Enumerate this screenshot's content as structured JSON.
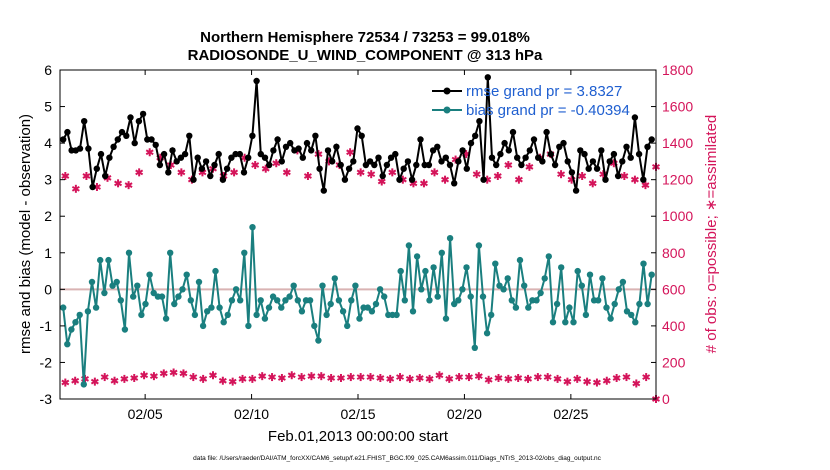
{
  "chart_data": {
    "type": "line",
    "title_line1": "Northern Hemisphere 72534 / 73253 = 99.018%",
    "title_line2": "RADIOSONDE_U_WIND_COMPONENT @ 313 hPa",
    "xlabel": "Feb.01,2013 00:00:00 start",
    "ylabel_left": "rmse and bias (model - observation)",
    "ylabel_right": "# of obs: o=possible; ∗=assimilated",
    "footer": "data file: /Users/raeder/DAI/ATM_forcXX/CAM6_setup/f.e21.FHIST_BGC.f09_025.CAM6assim.011/Diags_NTrS_2013-02/obs_diag_output.nc",
    "xlim": [
      1,
      29
    ],
    "ylim_left": [
      -3,
      6
    ],
    "ylim_right": [
      0,
      1800
    ],
    "x_ticks": [
      5,
      10,
      15,
      20,
      25
    ],
    "x_tick_labels": [
      "02/05",
      "02/10",
      "02/15",
      "02/20",
      "02/25"
    ],
    "y_ticks_left": [
      "-3",
      "-2",
      "-1",
      "0",
      "1",
      "2",
      "3",
      "4",
      "5",
      "6"
    ],
    "y_ticks_right": [
      "0",
      "200",
      "400",
      "600",
      "800",
      "1000",
      "1200",
      "1400",
      "1600",
      "1800"
    ],
    "zero_line": 0,
    "legend": [
      {
        "name": "rmse grand pr = 3.8327",
        "color": "#000000"
      },
      {
        "name": "bias grand pr = -0.40394",
        "color": "#1a7f7f"
      }
    ],
    "colors": {
      "rmse": "#000000",
      "bias": "#1a7f7f",
      "obs": "#d4145a",
      "right_axis": "#d4145a",
      "legend_text": "#1f5fd0",
      "zero_line": "#d9b3b3"
    },
    "rmse": [
      4.1,
      4.3,
      3.8,
      3.8,
      3.85,
      4.6,
      3.85,
      2.8,
      3.3,
      3.7,
      3.1,
      3.6,
      3.9,
      4.1,
      4.3,
      4.2,
      4.7,
      4.0,
      4.6,
      4.8,
      4.1,
      4.1,
      3.95,
      3.4,
      3.7,
      3.2,
      3.8,
      3.5,
      3.6,
      3.7,
      4.2,
      3.0,
      3.6,
      3.3,
      3.5,
      3.1,
      3.4,
      3.7,
      3.0,
      3.3,
      3.6,
      3.7,
      3.7,
      3.2,
      3.6,
      4.2,
      5.7,
      3.7,
      3.6,
      3.4,
      3.8,
      4.1,
      3.5,
      3.9,
      4.0,
      3.8,
      3.85,
      3.6,
      4.0,
      3.8,
      4.2,
      3.3,
      2.7,
      3.8,
      3.5,
      3.9,
      3.4,
      3.0,
      3.3,
      3.5,
      4.4,
      4.2,
      3.4,
      3.5,
      3.4,
      3.6,
      3.1,
      3.4,
      3.6,
      3.7,
      3.0,
      3.3,
      3.5,
      3.0,
      3.4,
      4.1,
      3.4,
      3.4,
      3.8,
      3.9,
      3.5,
      3.6,
      3.4,
      2.9,
      3.5,
      3.8,
      3.3,
      4.0,
      4.2,
      4.6,
      3.0,
      5.8,
      3.6,
      3.4,
      3.7,
      4.0,
      3.8,
      4.3,
      3.6,
      3.4,
      3.6,
      3.8,
      4.1,
      3.6,
      3.5,
      4.3,
      3.7,
      3.4,
      3.9,
      4.0,
      3.5,
      3.2,
      2.7,
      3.8,
      3.7,
      3.3,
      3.5,
      3.3,
      3.8,
      3.0,
      3.5,
      3.7,
      3.1,
      3.5,
      3.9,
      3.6,
      4.7,
      3.7,
      3.0,
      3.9,
      4.1
    ],
    "bias": [
      -0.5,
      -1.5,
      -1.1,
      -0.9,
      -0.7,
      -2.6,
      -0.6,
      0.2,
      -0.5,
      0.8,
      -0.1,
      0.8,
      0.1,
      0.2,
      -0.3,
      -1.1,
      1.0,
      -0.2,
      0.1,
      -0.7,
      -0.4,
      0.4,
      -0.1,
      -0.2,
      -0.2,
      -0.8,
      1.0,
      -0.4,
      -0.2,
      0.0,
      0.4,
      -0.3,
      -0.7,
      0.2,
      -1.0,
      -0.6,
      -0.5,
      0.5,
      -0.5,
      -0.9,
      -0.7,
      -0.3,
      0.0,
      -0.3,
      1.0,
      -1.0,
      1.7,
      -0.7,
      -0.3,
      -0.8,
      -0.5,
      -0.2,
      -0.3,
      -0.5,
      -0.3,
      -0.2,
      0.1,
      -0.3,
      -0.6,
      -0.3,
      -0.3,
      -1.0,
      -1.4,
      0.1,
      -0.7,
      -0.4,
      0.3,
      -0.3,
      -0.6,
      -1.0,
      -0.3,
      0.1,
      -0.8,
      -0.5,
      -0.5,
      -0.6,
      -0.4,
      0.0,
      -0.2,
      -0.7,
      -0.7,
      -0.7,
      0.5,
      -0.3,
      1.2,
      -0.6,
      0.9,
      0.0,
      0.5,
      -0.3,
      0.6,
      -0.2,
      1.0,
      -0.8,
      1.4,
      -0.4,
      -0.3,
      0.0,
      0.6,
      -0.2,
      -1.6,
      1.2,
      -0.2,
      -1.2,
      -0.7,
      0.7,
      0.1,
      0.0,
      0.3,
      -0.3,
      -0.5,
      0.8,
      0.1,
      -0.5,
      -0.3,
      -0.3,
      -0.1,
      0.3,
      0.9,
      -0.9,
      -0.4,
      0.6,
      -0.9,
      -0.5,
      -0.9,
      0.5,
      0.1,
      -0.7,
      0.4,
      -0.3,
      -0.3,
      0.3,
      -0.5,
      -0.8,
      -0.4,
      0.0,
      0.2,
      -0.6,
      -0.7,
      -0.9,
      -0.4,
      0.7,
      -0.4,
      0.4
    ],
    "obs_possible_main": [
      1220,
      1150,
      1220,
      1160,
      1210,
      1180,
      1170,
      1240,
      1350,
      1320,
      1280,
      1240,
      1200,
      1240,
      1260,
      1220,
      1240,
      1320,
      1280,
      1260,
      1290,
      1240,
      1360,
      1220,
      1340,
      1300,
      1280,
      1350,
      1240,
      1230,
      1190,
      1240,
      1200,
      1180,
      1180,
      1240,
      1200,
      1310,
      1340,
      1230,
      1200,
      1220,
      1280,
      1200,
      1270,
      1320,
      1340,
      1230,
      1200,
      1220,
      1180,
      1230,
      1290,
      1220,
      1200,
      1170,
      1270
    ],
    "obs_possible_low": [
      90,
      100,
      110,
      95,
      120,
      100,
      110,
      115,
      130,
      125,
      140,
      145,
      140,
      120,
      110,
      130,
      100,
      95,
      110,
      110,
      125,
      120,
      115,
      130,
      120,
      125,
      125,
      115,
      115,
      120,
      120,
      120,
      115,
      110,
      120,
      110,
      115,
      110,
      130,
      110,
      120,
      120,
      125,
      105,
      115,
      110,
      115,
      110,
      120,
      120,
      110,
      95,
      110,
      95,
      90,
      100,
      115,
      120,
      85,
      120,
      0
    ]
  }
}
